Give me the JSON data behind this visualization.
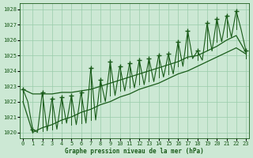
{
  "title": "Graphe pression niveau de la mer (hPa)",
  "background_color": "#cce8d4",
  "plot_bg_color": "#cce8d4",
  "grid_color": "#99ccaa",
  "line_color": "#1a5c1a",
  "xlim": [
    -0.3,
    23.3
  ],
  "ylim": [
    1019.6,
    1028.4
  ],
  "yticks": [
    1020,
    1021,
    1022,
    1023,
    1024,
    1025,
    1026,
    1027,
    1028
  ],
  "xticks": [
    0,
    1,
    2,
    3,
    4,
    5,
    6,
    7,
    8,
    9,
    10,
    11,
    12,
    13,
    14,
    15,
    16,
    17,
    18,
    19,
    20,
    21,
    22,
    23
  ],
  "peak_values": [
    1022.8,
    1020.2,
    1022.6,
    1022.2,
    1022.3,
    1022.4,
    1022.6,
    1024.2,
    1023.4,
    1024.6,
    1024.3,
    1024.5,
    1024.7,
    1024.8,
    1025.0,
    1025.1,
    1025.9,
    1026.6,
    1025.3,
    1027.1,
    1027.4,
    1027.6,
    1027.9,
    1025.3
  ],
  "valley_values": [
    1022.0,
    1020.0,
    1020.1,
    1020.2,
    1020.6,
    1020.5,
    1020.6,
    1020.8,
    1022.0,
    1022.4,
    1022.7,
    1022.9,
    1023.1,
    1023.3,
    1023.6,
    1023.8,
    1024.3,
    1024.8,
    1024.7,
    1025.3,
    1025.9,
    1026.2,
    1026.7,
    1024.8
  ],
  "trend_low": [
    1022.0,
    1020.0,
    1020.3,
    1020.5,
    1020.8,
    1021.0,
    1021.3,
    1021.5,
    1021.8,
    1022.0,
    1022.3,
    1022.5,
    1022.8,
    1023.0,
    1023.2,
    1023.5,
    1023.8,
    1024.0,
    1024.3,
    1024.6,
    1024.9,
    1025.2,
    1025.5,
    1025.1
  ],
  "trend_high": [
    1022.8,
    1022.5,
    1022.5,
    1022.5,
    1022.6,
    1022.6,
    1022.7,
    1022.8,
    1023.0,
    1023.2,
    1023.4,
    1023.6,
    1023.8,
    1024.0,
    1024.2,
    1024.4,
    1024.6,
    1024.9,
    1025.0,
    1025.3,
    1025.6,
    1026.0,
    1026.3,
    1025.2
  ]
}
